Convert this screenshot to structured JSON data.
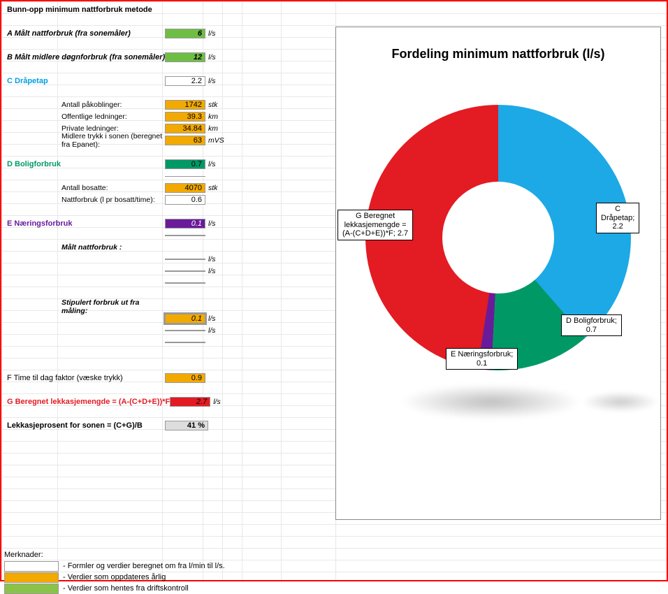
{
  "title": "Bunn-opp minimum nattforbruk metode",
  "rows": {
    "A": {
      "label": "A  Målt  nattforbruk  (fra sonemåler)",
      "value": "6",
      "unit": "l/s",
      "color_label": "#000",
      "bg": "bg-green"
    },
    "B": {
      "label": "B Målt midlere døgnforbruk (fra sonemåler)",
      "value": "12",
      "unit": "l/s",
      "bg": "bg-green"
    },
    "C": {
      "label": "C Dråpetap",
      "value": "2.2",
      "unit": "l/s",
      "color": "#009fe3"
    },
    "C1": {
      "label": "Antall påkoblinger:",
      "value": "1742",
      "unit": "stk",
      "bg": "bg-orange"
    },
    "C2": {
      "label": "Offentlige ledninger:",
      "value": "39.3",
      "unit": "km",
      "bg": "bg-orange"
    },
    "C3": {
      "label": "Private ledninger:",
      "value": "34.84",
      "unit": "km",
      "bg": "bg-orange"
    },
    "C4": {
      "label": "Midlere trykk i sonen (beregnet fra Epanet):",
      "value": "63",
      "unit": "mVS",
      "bg": "bg-orange"
    },
    "D": {
      "label": "D Boligforbruk",
      "value": "0.7",
      "unit": "l/s",
      "color": "#009966",
      "bg": "bg-dgreen"
    },
    "D1": {
      "label": "Antall bosatte:",
      "value": "4070",
      "unit": "stk",
      "bg": "bg-orange"
    },
    "D2": {
      "label": "Nattforbruk (l pr bosatt/time):",
      "value": "0.6",
      "unit": ""
    },
    "E": {
      "label": "E Næringsforbruk",
      "value": "0.1",
      "unit": "l/s",
      "color": "#6a1b9a",
      "bg": "bg-purple"
    },
    "E1": {
      "label": "Målt nattforbruk :"
    },
    "E1a": {
      "value": "",
      "unit": "l/s",
      "bg": "bg-lgreen"
    },
    "E1b": {
      "value": "",
      "unit": "l/s",
      "bg": "bg-lgreen"
    },
    "E2": {
      "label": "Stipulert forbruk ut fra måling:"
    },
    "E2a": {
      "value": "0.1",
      "unit": "l/s",
      "bg": "bg-orange"
    },
    "E2b": {
      "value": "",
      "unit": "l/s",
      "bg": "bg-orange"
    },
    "F": {
      "label": "F Time til dag faktor (væske trykk)",
      "value": "0.9",
      "unit": "",
      "bg": "bg-orange"
    },
    "G": {
      "label": "G Beregnet lekkasjemengde = (A-(C+D+E))*F",
      "value": "2.7",
      "unit": "l/s",
      "color": "#e31b23",
      "bg": "bg-red"
    },
    "L": {
      "label": "Lekkasjeprosent for sonen = (C+G)/B",
      "value": "41 %",
      "bg": "bg-grey"
    }
  },
  "remarks": {
    "title": "Merknader:",
    "r1": "- Formler og verdier beregnet om fra l/min til l/s.",
    "r2": "- Verdier som oppdateres årlig",
    "r3": "- Verdier som hentes fra driftskontroll",
    "c2": "#f2a900",
    "c3": "#8bc34a"
  },
  "chart": {
    "title": "Fordeling minimum nattforbruk (l/s)",
    "background": "#ffffff",
    "hole_color": "#ffffff",
    "outer_radius": 190,
    "inner_radius": 80,
    "title_fontsize": 18,
    "label_fontsize": 11,
    "slices": [
      {
        "name": "C Dråpetap",
        "value": 2.2,
        "color": "#1ca9e6",
        "deg": 139
      },
      {
        "name": "D Boligforbruk",
        "value": 0.7,
        "color": "#009966",
        "deg": 44
      },
      {
        "name": "E Næringsforbruk",
        "value": 0.1,
        "color": "#6a1b9a",
        "deg": 6
      },
      {
        "name": "G Beregnet lekkasjemengde = (A-(C+D+E))*F",
        "value": 2.7,
        "color": "#e31b23",
        "deg": 171
      }
    ],
    "labels": {
      "c": "C Dråpetap; 2.2",
      "d": "D Boligforbruk;\n0.7",
      "e": "E Næringsforbruk;\n0.1",
      "g": "G Beregnet\nlekkasjemengde =\n(A-(C+D+E))*F; 2.7"
    }
  },
  "colors": {
    "green": "#6fbe44",
    "dgreen": "#009966",
    "orange": "#f2a900",
    "purple": "#6a1b9a",
    "red": "#e31b23",
    "lgreen": "#8bc34a",
    "blue": "#1ca9e6",
    "grid": "#e8e8e8",
    "grey": "#dddddd"
  }
}
